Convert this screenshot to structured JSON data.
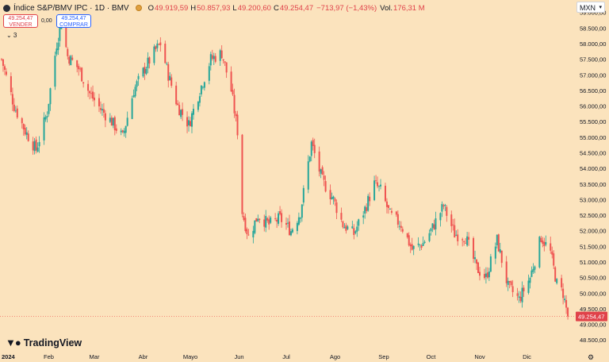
{
  "header": {
    "symbol_title": "Índice S&P/BMV IPC · 1D · BMV",
    "open_label": "O",
    "open": "49.919,59",
    "high_label": "H",
    "high": "50.857,93",
    "low_label": "L",
    "low": "49.200,60",
    "close_label": "C",
    "close": "49.254,47",
    "change": "−713,97 (−1,43%)",
    "volume_label": "Vol.",
    "volume": "176,31 M"
  },
  "trade": {
    "sell_price": "49.254,47",
    "sell_label": "VENDER",
    "spread": "0,00",
    "buy_price": "49.254,47",
    "buy_label": "COMPRAR"
  },
  "indicator_toggle": "⌄ 3",
  "currency": "MXN",
  "brand": "TradingView",
  "last_price_label": "49.254,47",
  "colors": {
    "up": "#26a69a",
    "down": "#ef5350",
    "background": "#fbe3bd",
    "axis_text": "#131722"
  },
  "icons": {
    "symbol": "symbol-logo-icon",
    "market_status": "market-status-icon",
    "settings": "gear-icon",
    "brand": "tradingview-logo-icon"
  },
  "chart_data": {
    "type": "candlestick",
    "y_axis_ticks": [
      "59.000,00",
      "58.500,00",
      "58.000,00",
      "57.500,00",
      "57.000,00",
      "56.500,00",
      "56.000,00",
      "55.500,00",
      "55.000,00",
      "54.500,00",
      "54.000,00",
      "53.500,00",
      "53.000,00",
      "52.500,00",
      "52.000,00",
      "51.500,00",
      "51.000,00",
      "50.500,00",
      "50.000,00",
      "49.500,00",
      "49.000,00",
      "48.500,00"
    ],
    "y_axis_values": [
      59000,
      58500,
      58000,
      57500,
      57000,
      56500,
      56000,
      55500,
      55000,
      54500,
      54000,
      53500,
      53000,
      52500,
      52000,
      51500,
      51000,
      50500,
      50000,
      49500,
      49000,
      48500
    ],
    "ylim": [
      48200,
      59400
    ],
    "x_axis_labels": [
      "2024",
      "Feb",
      "Mar",
      "Abr",
      "Mayo",
      "Jun",
      "Jul",
      "Ago",
      "Sep",
      "Oct",
      "Nov",
      "Dic"
    ],
    "x_axis_dates": [
      "2024-01-01",
      "2024-02-01",
      "2024-03-01",
      "2024-04-01",
      "2024-05-01",
      "2024-06-01",
      "2024-07-01",
      "2024-08-01",
      "2024-09-01",
      "2024-10-01",
      "2024-11-01",
      "2024-12-01"
    ],
    "x_range": [
      "2024-01-01",
      "2024-12-31"
    ],
    "last_price": 49254.47,
    "close_path": [
      [
        "2024-01-02",
        57500
      ],
      [
        "2024-01-10",
        56000
      ],
      [
        "2024-01-17",
        55200
      ],
      [
        "2024-01-24",
        54600
      ],
      [
        "2024-01-31",
        55800
      ],
      [
        "2024-02-06",
        58000
      ],
      [
        "2024-02-09",
        58700
      ],
      [
        "2024-02-13",
        57600
      ],
      [
        "2024-02-20",
        57200
      ],
      [
        "2024-02-27",
        56400
      ],
      [
        "2024-03-05",
        55900
      ],
      [
        "2024-03-12",
        55500
      ],
      [
        "2024-03-19",
        55000
      ],
      [
        "2024-03-26",
        56500
      ],
      [
        "2024-04-02",
        57200
      ],
      [
        "2024-04-09",
        57800
      ],
      [
        "2024-04-12",
        58000
      ],
      [
        "2024-04-17",
        57000
      ],
      [
        "2024-04-23",
        56000
      ],
      [
        "2024-04-30",
        55400
      ],
      [
        "2024-05-07",
        56500
      ],
      [
        "2024-05-14",
        57500
      ],
      [
        "2024-05-21",
        57700
      ],
      [
        "2024-05-27",
        56500
      ],
      [
        "2024-05-31",
        55200
      ],
      [
        "2024-06-03",
        52600
      ],
      [
        "2024-06-07",
        51800
      ],
      [
        "2024-06-13",
        52500
      ],
      [
        "2024-06-20",
        52200
      ],
      [
        "2024-06-27",
        52400
      ],
      [
        "2024-07-04",
        52000
      ],
      [
        "2024-07-10",
        52600
      ],
      [
        "2024-07-17",
        54800
      ],
      [
        "2024-07-24",
        53600
      ],
      [
        "2024-07-31",
        53000
      ],
      [
        "2024-08-06",
        52200
      ],
      [
        "2024-08-13",
        51900
      ],
      [
        "2024-08-20",
        52700
      ],
      [
        "2024-08-26",
        53500
      ],
      [
        "2024-08-30",
        53300
      ],
      [
        "2024-09-05",
        52500
      ],
      [
        "2024-09-12",
        52200
      ],
      [
        "2024-09-19",
        51400
      ],
      [
        "2024-09-26",
        51600
      ],
      [
        "2024-10-02",
        52100
      ],
      [
        "2024-10-09",
        52800
      ],
      [
        "2024-10-16",
        51900
      ],
      [
        "2024-10-23",
        51800
      ],
      [
        "2024-10-30",
        50800
      ],
      [
        "2024-11-05",
        50500
      ],
      [
        "2024-11-12",
        51700
      ],
      [
        "2024-11-19",
        50200
      ],
      [
        "2024-11-26",
        49800
      ],
      [
        "2024-12-03",
        50500
      ],
      [
        "2024-12-10",
        51800
      ],
      [
        "2024-12-16",
        51300
      ],
      [
        "2024-12-20",
        50300
      ],
      [
        "2024-12-24",
        50000
      ],
      [
        "2024-12-27",
        49254
      ]
    ]
  }
}
